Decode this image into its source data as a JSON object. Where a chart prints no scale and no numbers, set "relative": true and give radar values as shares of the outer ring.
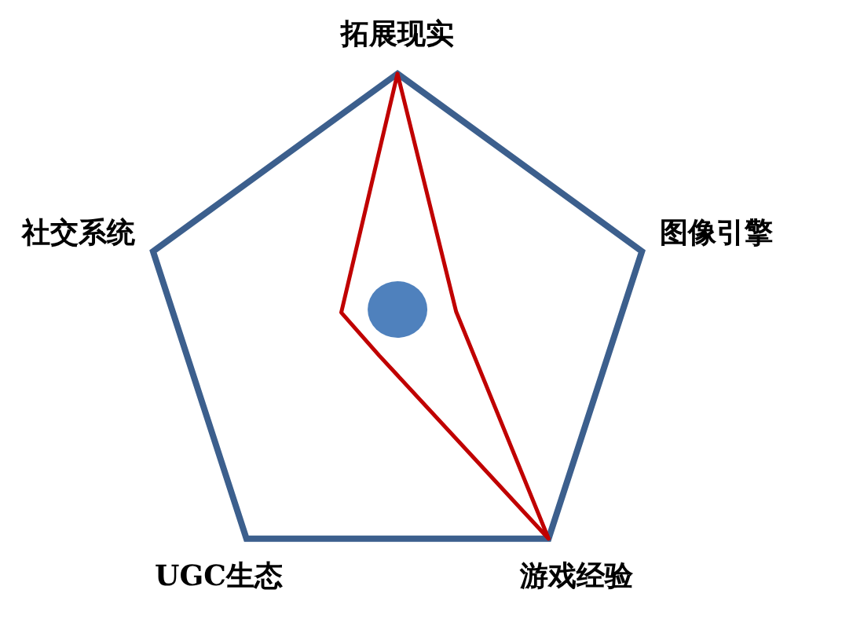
{
  "chart_data": {
    "type": "radar",
    "relative": true,
    "categories": [
      "拓展现实",
      "图像引擎",
      "游戏经验",
      "UGC生态",
      "社交系统"
    ],
    "series": [
      {
        "color": "#c00000",
        "values": [
          1,
          0.24,
          1,
          0.12,
          0.23
        ]
      }
    ]
  }
}
